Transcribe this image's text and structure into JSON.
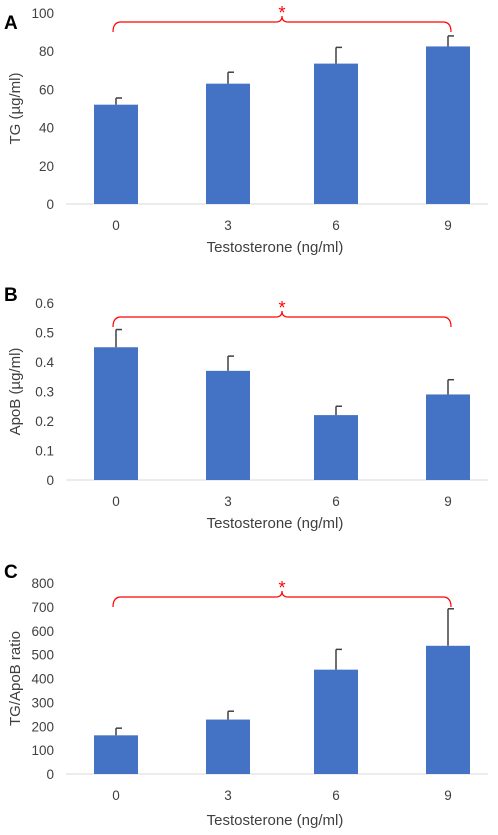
{
  "chart_data": [
    {
      "type": "bar",
      "panel": "A",
      "categories": [
        "0",
        "3",
        "6",
        "9"
      ],
      "values": [
        52,
        63,
        73.5,
        82.5
      ],
      "errors": [
        3.5,
        6,
        8.5,
        5.5
      ],
      "ylabel": "TG (µg/ml)",
      "xlabel": "Testosterone (ng/ml)",
      "ylim": [
        0,
        100
      ],
      "yticks": [
        "0",
        "20",
        "40",
        "60",
        "80",
        "100"
      ],
      "significance": "*",
      "grid": false,
      "bar_color": "#4472c4"
    },
    {
      "type": "bar",
      "panel": "B",
      "categories": [
        "0",
        "3",
        "6",
        "9"
      ],
      "values": [
        0.45,
        0.37,
        0.22,
        0.29
      ],
      "errors": [
        0.06,
        0.05,
        0.03,
        0.05
      ],
      "ylabel": "ApoB (µg/ml)",
      "xlabel": "Testosterone (ng/ml)",
      "ylim": [
        0,
        0.6
      ],
      "yticks": [
        "0",
        "0.1",
        "0.2",
        "0.3",
        "0.4",
        "0.5",
        "0.6"
      ],
      "significance": "*",
      "grid": false,
      "bar_color": "#4472c4"
    },
    {
      "type": "bar",
      "panel": "C",
      "categories": [
        "0",
        "3",
        "6",
        "9"
      ],
      "values": [
        162,
        228,
        437,
        537
      ],
      "errors": [
        30,
        35,
        85,
        155
      ],
      "ylabel": "TG/ApoB ratio",
      "xlabel": "Testosterone (ng/ml)",
      "ylim": [
        0,
        800
      ],
      "yticks": [
        "0",
        "100",
        "200",
        "300",
        "400",
        "500",
        "600",
        "700",
        "800"
      ],
      "significance": "*",
      "grid": false,
      "bar_color": "#4472c4"
    }
  ],
  "colors": {
    "bar": "#4472c4",
    "error_bar": "#404040",
    "significance": "#ff0000",
    "axis": "#d9d9d9"
  }
}
